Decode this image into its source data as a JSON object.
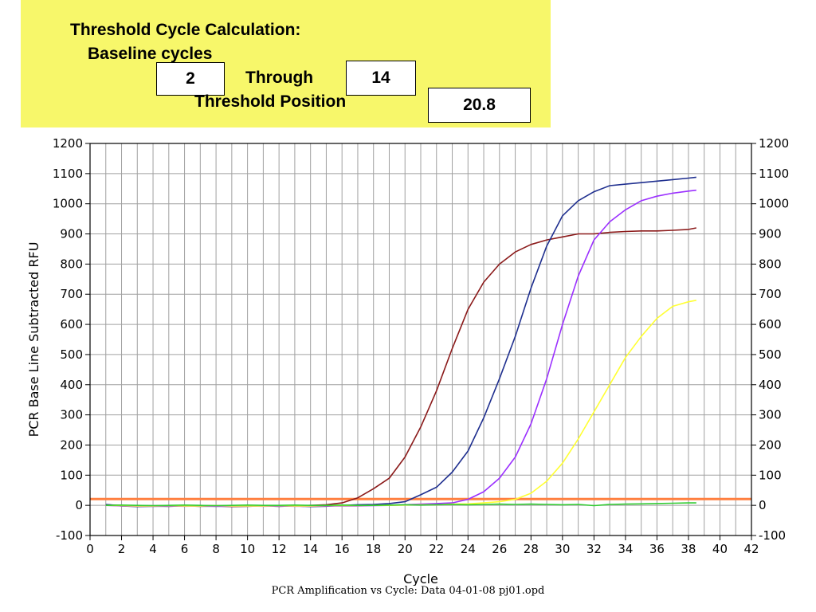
{
  "header": {
    "title": "Threshold Cycle Calculation:",
    "baseline_label": "Baseline cycles",
    "baseline_start": "2",
    "through_label": "Through",
    "baseline_end": "14",
    "threshold_label": "Threshold Position",
    "threshold_value": "20.8"
  },
  "caption": "PCR Amplification vs Cycle: Data 04-01-08 pj01.opd",
  "chart_data": {
    "type": "line",
    "xlabel": "Cycle",
    "ylabel": "PCR Base Line Subtracted RFU",
    "xlim": [
      0,
      42
    ],
    "ylim": [
      -100,
      1200
    ],
    "xticks": [
      "0",
      "2",
      "4",
      "6",
      "8",
      "10",
      "12",
      "14",
      "16",
      "18",
      "20",
      "22",
      "24",
      "26",
      "28",
      "30",
      "32",
      "34",
      "36",
      "38",
      "40",
      "42"
    ],
    "yticks": [
      "-100",
      "0",
      "100",
      "200",
      "300",
      "400",
      "500",
      "600",
      "700",
      "800",
      "900",
      "1000",
      "1100",
      "1200"
    ],
    "grid": true,
    "threshold": {
      "value": 20.8,
      "color": "#ff7f3f"
    },
    "series": [
      {
        "color": "#8b1a1a",
        "x": [
          1,
          2,
          3,
          4,
          5,
          6,
          7,
          8,
          9,
          10,
          11,
          12,
          13,
          14,
          15,
          16,
          17,
          18,
          19,
          20,
          21,
          22,
          23,
          24,
          25,
          26,
          27,
          28,
          29,
          30,
          31,
          32,
          33,
          34,
          35,
          36,
          37,
          38,
          38.5
        ],
        "y": [
          2,
          0,
          -3,
          -2,
          -3,
          -2,
          -3,
          -2,
          -4,
          -3,
          -2,
          -3,
          -2,
          0,
          2,
          8,
          25,
          55,
          90,
          160,
          260,
          380,
          520,
          650,
          740,
          800,
          840,
          865,
          880,
          890,
          900,
          900,
          905,
          908,
          910,
          910,
          912,
          915,
          920
        ]
      },
      {
        "color": "#1f2f8f",
        "x": [
          1,
          2,
          3,
          4,
          5,
          6,
          7,
          8,
          9,
          10,
          11,
          12,
          13,
          14,
          15,
          16,
          17,
          18,
          19,
          20,
          21,
          22,
          23,
          24,
          25,
          26,
          27,
          28,
          29,
          30,
          31,
          32,
          33,
          34,
          35,
          36,
          37,
          38,
          38.5
        ],
        "y": [
          3,
          -2,
          -4,
          -3,
          -3,
          -2,
          -3,
          -3,
          -3,
          -3,
          -2,
          -3,
          -2,
          -4,
          -3,
          0,
          2,
          3,
          6,
          12,
          35,
          60,
          110,
          180,
          290,
          420,
          560,
          720,
          860,
          960,
          1010,
          1040,
          1060,
          1065,
          1070,
          1075,
          1080,
          1085,
          1088
        ]
      },
      {
        "color": "#9b30ff",
        "x": [
          1,
          2,
          3,
          4,
          5,
          6,
          7,
          8,
          9,
          10,
          11,
          12,
          13,
          14,
          15,
          16,
          17,
          18,
          19,
          20,
          21,
          22,
          23,
          24,
          25,
          26,
          27,
          28,
          29,
          30,
          31,
          32,
          33,
          34,
          35,
          36,
          37,
          38,
          38.5
        ],
        "y": [
          0,
          -2,
          -3,
          -3,
          -2,
          -3,
          -2,
          -3,
          -3,
          -2,
          -3,
          -2,
          -3,
          -3,
          -2,
          -2,
          -2,
          -1,
          0,
          2,
          4,
          6,
          8,
          20,
          45,
          90,
          160,
          270,
          420,
          600,
          760,
          880,
          940,
          980,
          1010,
          1025,
          1035,
          1042,
          1045
        ]
      },
      {
        "color": "#ffff33",
        "x": [
          1,
          2,
          3,
          4,
          5,
          6,
          7,
          8,
          9,
          10,
          11,
          12,
          13,
          14,
          15,
          16,
          17,
          18,
          19,
          20,
          21,
          22,
          23,
          24,
          25,
          26,
          27,
          28,
          29,
          30,
          31,
          32,
          33,
          34,
          35,
          36,
          37,
          38,
          38.5
        ],
        "y": [
          0,
          -1,
          -2,
          -2,
          -1,
          -2,
          -2,
          -1,
          -2,
          -2,
          -2,
          -1,
          -2,
          -2,
          -1,
          -1,
          -1,
          0,
          0,
          1,
          2,
          2,
          4,
          5,
          8,
          12,
          20,
          40,
          80,
          140,
          220,
          310,
          400,
          490,
          560,
          620,
          660,
          675,
          680
        ]
      },
      {
        "color": "#33cc33",
        "x": [
          1,
          2,
          3,
          4,
          5,
          6,
          7,
          8,
          9,
          10,
          11,
          12,
          13,
          14,
          15,
          16,
          17,
          18,
          19,
          20,
          21,
          22,
          23,
          24,
          25,
          26,
          27,
          28,
          29,
          30,
          31,
          32,
          33,
          34,
          35,
          36,
          37,
          38,
          38.5
        ],
        "y": [
          0,
          1,
          0,
          -1,
          0,
          1,
          0,
          -1,
          0,
          1,
          0,
          0,
          1,
          0,
          0,
          1,
          0,
          0,
          1,
          2,
          1,
          2,
          3,
          2,
          3,
          4,
          3,
          4,
          3,
          2,
          3,
          -1,
          3,
          4,
          5,
          6,
          7,
          8,
          8
        ]
      }
    ]
  }
}
